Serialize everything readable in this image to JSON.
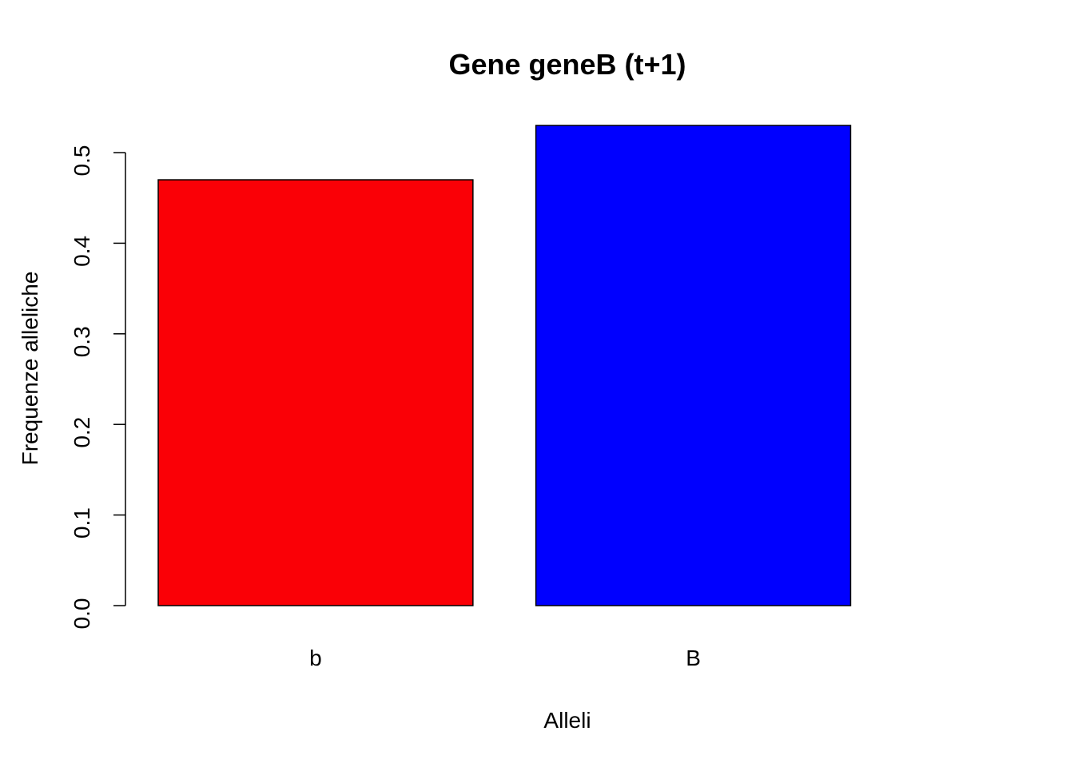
{
  "chart_data": {
    "type": "bar",
    "title": "Gene geneB (t+1)",
    "xlabel": "Alleli",
    "ylabel": "Frequenze alleliche",
    "categories": [
      "b",
      "B"
    ],
    "values": [
      0.47,
      0.53
    ],
    "colors": [
      "#fa0006",
      "#0000ff"
    ],
    "ylim": [
      0,
      0.53
    ],
    "yticks": [
      0.0,
      0.1,
      0.2,
      0.3,
      0.4,
      0.5
    ],
    "ytick_labels": [
      "0.0",
      "0.1",
      "0.2",
      "0.3",
      "0.4",
      "0.5"
    ],
    "grid": false,
    "legend": "none"
  }
}
